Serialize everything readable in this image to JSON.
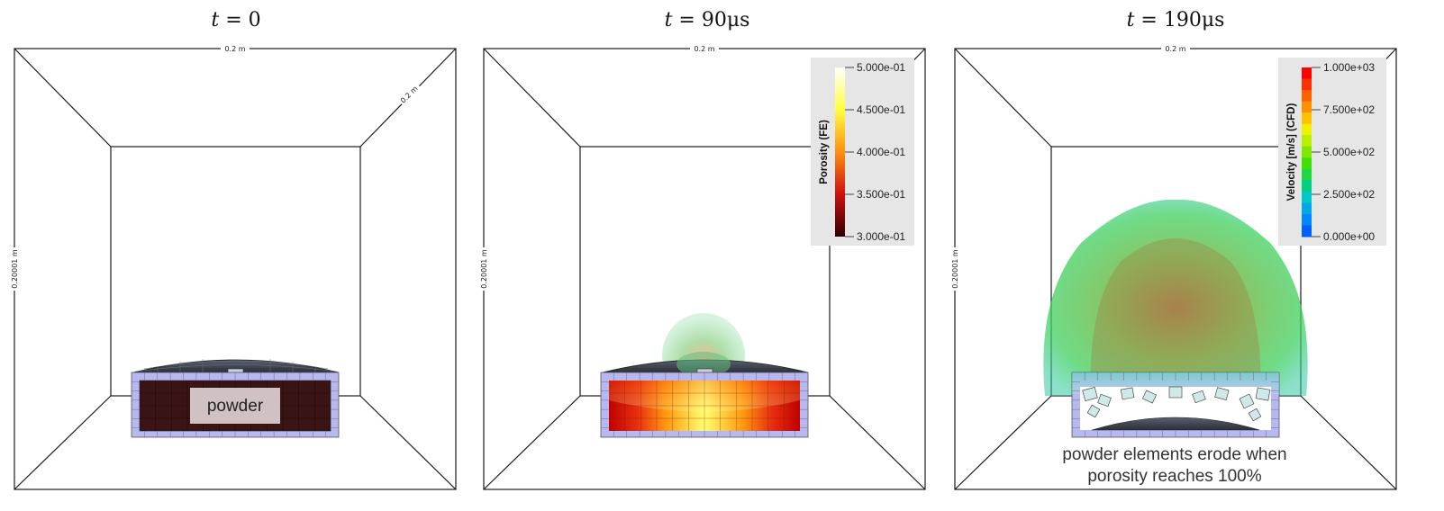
{
  "panels": [
    {
      "title_var": "t",
      "title_value": "= 0",
      "dim_top": "0.2 m",
      "dim_side": "0.20001 m",
      "dim_depth": "0.2 m",
      "label": "powder"
    },
    {
      "title_var": "t",
      "title_value": "= 90μs",
      "dim_top": "0.2 m",
      "dim_side": "0.20001 m",
      "colorbar": {
        "title": "Porosity (FE)",
        "ticks": [
          "5.000e-01",
          "4.500e-01",
          "4.000e-01",
          "3.500e-01",
          "3.000e-01"
        ],
        "colors": [
          "#ffffff",
          "#ffff40",
          "#ff9010",
          "#d01010",
          "#300000"
        ]
      }
    },
    {
      "title_var": "t",
      "title_value": "= 190μs",
      "dim_top": "0.2 m",
      "dim_side": "0.20001 m",
      "colorbar": {
        "title": "Velocity [m/s] (CFD)",
        "ticks": [
          "1.000e+03",
          "7.500e+02",
          "5.000e+02",
          "2.500e+02",
          "0.000e+00"
        ],
        "colors": [
          "#ff0000",
          "#ff8800",
          "#e8ff00",
          "#50e000",
          "#00c8c8",
          "#0060ff"
        ]
      },
      "caption_line1": "powder elements erode when",
      "caption_line2": "porosity reaches 100%"
    }
  ],
  "colors": {
    "frame": "#1a1a1a",
    "mesh_border": "#b8b8f0",
    "powder_dark": "#3a1414",
    "cap_dark": "#3a3f4a",
    "plume_green": "#40d060"
  }
}
